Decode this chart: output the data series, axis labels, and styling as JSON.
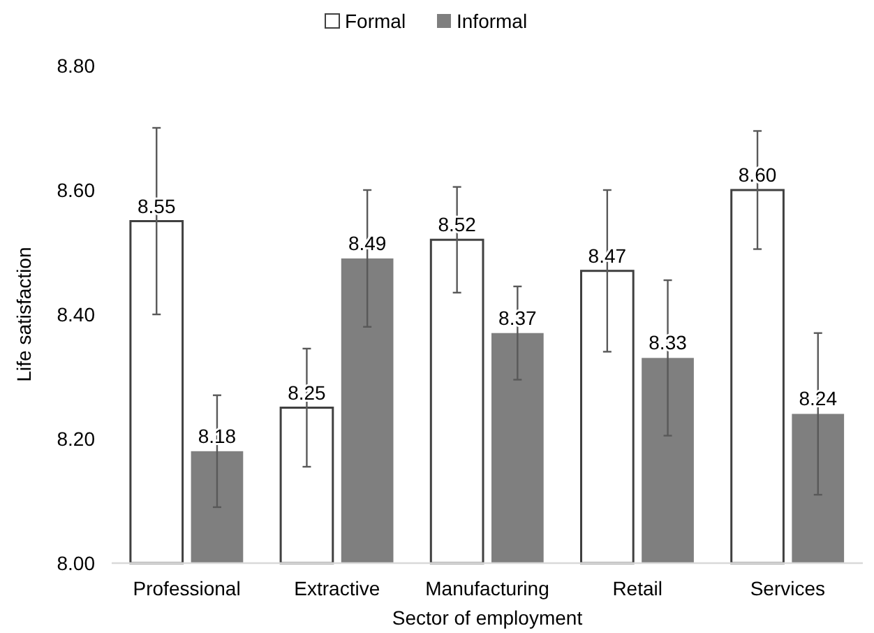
{
  "chart_data": {
    "type": "bar",
    "xlabel": "Sector of employment",
    "ylabel": "Life satisfaction",
    "categories": [
      "Professional",
      "Extractive",
      "Manufacturing",
      "Retail",
      "Services"
    ],
    "series": [
      {
        "name": "Formal",
        "color": "#ffffff",
        "values": [
          8.55,
          8.25,
          8.52,
          8.47,
          8.6
        ],
        "value_labels": [
          "8.55",
          "8.25",
          "8.52",
          "8.47",
          "8.60"
        ],
        "errors": [
          0.15,
          0.095,
          0.085,
          0.13,
          0.095
        ]
      },
      {
        "name": "Informal",
        "color": "#7f7f7f",
        "values": [
          8.18,
          8.49,
          8.37,
          8.33,
          8.24
        ],
        "value_labels": [
          "8.18",
          "8.49",
          "8.37",
          "8.33",
          "8.24"
        ],
        "errors": [
          0.09,
          0.11,
          0.075,
          0.125,
          0.13
        ]
      }
    ],
    "ylim": [
      8.0,
      8.8
    ],
    "yticks": [
      {
        "value": 8.0,
        "label": "8.00"
      },
      {
        "value": 8.2,
        "label": "8.20"
      },
      {
        "value": 8.4,
        "label": "8.40"
      },
      {
        "value": 8.6,
        "label": "8.60"
      },
      {
        "value": 8.8,
        "label": "8.80"
      }
    ],
    "grid": false,
    "legend": "top"
  }
}
